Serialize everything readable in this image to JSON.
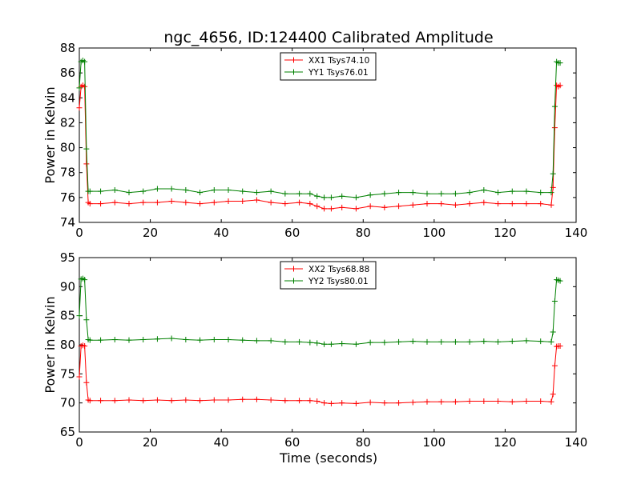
{
  "title": "ngc_4656, ID:124400 Calibrated Amplitude",
  "xlabel": "Time (seconds)",
  "chart_data": [
    {
      "type": "line",
      "ylabel": "Power in Kelvin",
      "xlim": [
        0,
        140
      ],
      "ylim": [
        74,
        88
      ],
      "xticks": [
        "0",
        "20",
        "40",
        "60",
        "80",
        "100",
        "120",
        "140"
      ],
      "yticks": [
        "74",
        "76",
        "78",
        "80",
        "82",
        "84",
        "86",
        "88"
      ],
      "legend_position": "top-center",
      "marker": "+",
      "series": [
        {
          "name": "XX1 Tsys74.10",
          "color": "#ff0000",
          "x": [
            0,
            0.5,
            1,
            1.5,
            2,
            2.5,
            3,
            6,
            10,
            14,
            18,
            22,
            26,
            30,
            34,
            38,
            42,
            46,
            50,
            54,
            58,
            62,
            65,
            67,
            69,
            71,
            74,
            78,
            82,
            86,
            90,
            94,
            98,
            102,
            106,
            110,
            114,
            118,
            122,
            126,
            130,
            133,
            133.5,
            134,
            134.5,
            135,
            135.5
          ],
          "y": [
            83.2,
            84.9,
            85.0,
            84.9,
            78.7,
            75.6,
            75.5,
            75.5,
            75.6,
            75.5,
            75.6,
            75.6,
            75.7,
            75.6,
            75.5,
            75.6,
            75.7,
            75.7,
            75.8,
            75.6,
            75.5,
            75.6,
            75.5,
            75.3,
            75.1,
            75.1,
            75.2,
            75.1,
            75.3,
            75.2,
            75.3,
            75.4,
            75.5,
            75.5,
            75.4,
            75.5,
            75.6,
            75.5,
            75.5,
            75.5,
            75.5,
            75.4,
            76.8,
            81.6,
            85.0,
            84.9,
            85.0
          ]
        },
        {
          "name": "YY1 Tsys76.01",
          "color": "#008000",
          "x": [
            0,
            0.5,
            1,
            1.5,
            2,
            2.5,
            3,
            6,
            10,
            14,
            18,
            22,
            26,
            30,
            34,
            38,
            42,
            46,
            50,
            54,
            58,
            62,
            65,
            67,
            69,
            71,
            74,
            78,
            82,
            86,
            90,
            94,
            98,
            102,
            106,
            110,
            114,
            118,
            122,
            126,
            130,
            133,
            133.5,
            134,
            134.5,
            135,
            135.5
          ],
          "y": [
            84.8,
            86.9,
            87.0,
            86.9,
            79.9,
            76.5,
            76.5,
            76.5,
            76.6,
            76.4,
            76.5,
            76.7,
            76.7,
            76.6,
            76.4,
            76.6,
            76.6,
            76.5,
            76.4,
            76.5,
            76.3,
            76.3,
            76.3,
            76.1,
            76.0,
            76.0,
            76.1,
            76.0,
            76.2,
            76.3,
            76.4,
            76.4,
            76.3,
            76.3,
            76.3,
            76.4,
            76.6,
            76.4,
            76.5,
            76.5,
            76.4,
            76.4,
            77.9,
            83.3,
            86.9,
            86.8,
            86.8
          ]
        }
      ]
    },
    {
      "type": "line",
      "ylabel": "Power in Kelvin",
      "xlim": [
        0,
        140
      ],
      "ylim": [
        65,
        95
      ],
      "xticks": [
        "0",
        "20",
        "40",
        "60",
        "80",
        "100",
        "120",
        "140"
      ],
      "yticks": [
        "65",
        "70",
        "75",
        "80",
        "85",
        "90",
        "95"
      ],
      "legend_position": "top-center",
      "marker": "+",
      "series": [
        {
          "name": "XX2 Tsys68.88",
          "color": "#ff0000",
          "x": [
            0,
            0.5,
            1,
            1.5,
            2,
            2.5,
            3,
            6,
            10,
            14,
            18,
            22,
            26,
            30,
            34,
            38,
            42,
            46,
            50,
            54,
            58,
            62,
            65,
            67,
            69,
            71,
            74,
            78,
            82,
            86,
            90,
            94,
            98,
            102,
            106,
            110,
            114,
            118,
            122,
            126,
            130,
            133,
            133.5,
            134,
            134.5,
            135,
            135.5
          ],
          "y": [
            74.5,
            79.8,
            79.9,
            79.8,
            73.5,
            70.5,
            70.4,
            70.4,
            70.4,
            70.5,
            70.4,
            70.5,
            70.4,
            70.5,
            70.4,
            70.5,
            70.5,
            70.6,
            70.6,
            70.5,
            70.4,
            70.4,
            70.4,
            70.3,
            70.0,
            69.9,
            70.0,
            69.9,
            70.1,
            70.0,
            70.0,
            70.1,
            70.2,
            70.2,
            70.2,
            70.3,
            70.3,
            70.3,
            70.2,
            70.3,
            70.3,
            70.2,
            71.5,
            76.4,
            79.7,
            79.8,
            79.8
          ]
        },
        {
          "name": "YY2 Tsys80.01",
          "color": "#008000",
          "x": [
            0,
            0.5,
            1,
            1.5,
            2,
            2.5,
            3,
            6,
            10,
            14,
            18,
            22,
            26,
            30,
            34,
            38,
            42,
            46,
            50,
            54,
            58,
            62,
            65,
            67,
            69,
            71,
            74,
            78,
            82,
            86,
            90,
            94,
            98,
            102,
            106,
            110,
            114,
            118,
            122,
            126,
            130,
            133,
            133.5,
            134,
            134.5,
            135,
            135.5
          ],
          "y": [
            85.0,
            91.3,
            91.4,
            91.2,
            84.3,
            80.9,
            80.8,
            80.8,
            80.9,
            80.8,
            80.9,
            81.0,
            81.1,
            80.9,
            80.8,
            80.9,
            80.9,
            80.8,
            80.7,
            80.7,
            80.5,
            80.5,
            80.4,
            80.3,
            80.1,
            80.1,
            80.2,
            80.1,
            80.4,
            80.4,
            80.5,
            80.6,
            80.5,
            80.5,
            80.5,
            80.5,
            80.6,
            80.5,
            80.6,
            80.7,
            80.6,
            80.5,
            82.2,
            87.5,
            91.2,
            91.1,
            91.0
          ]
        }
      ]
    }
  ]
}
